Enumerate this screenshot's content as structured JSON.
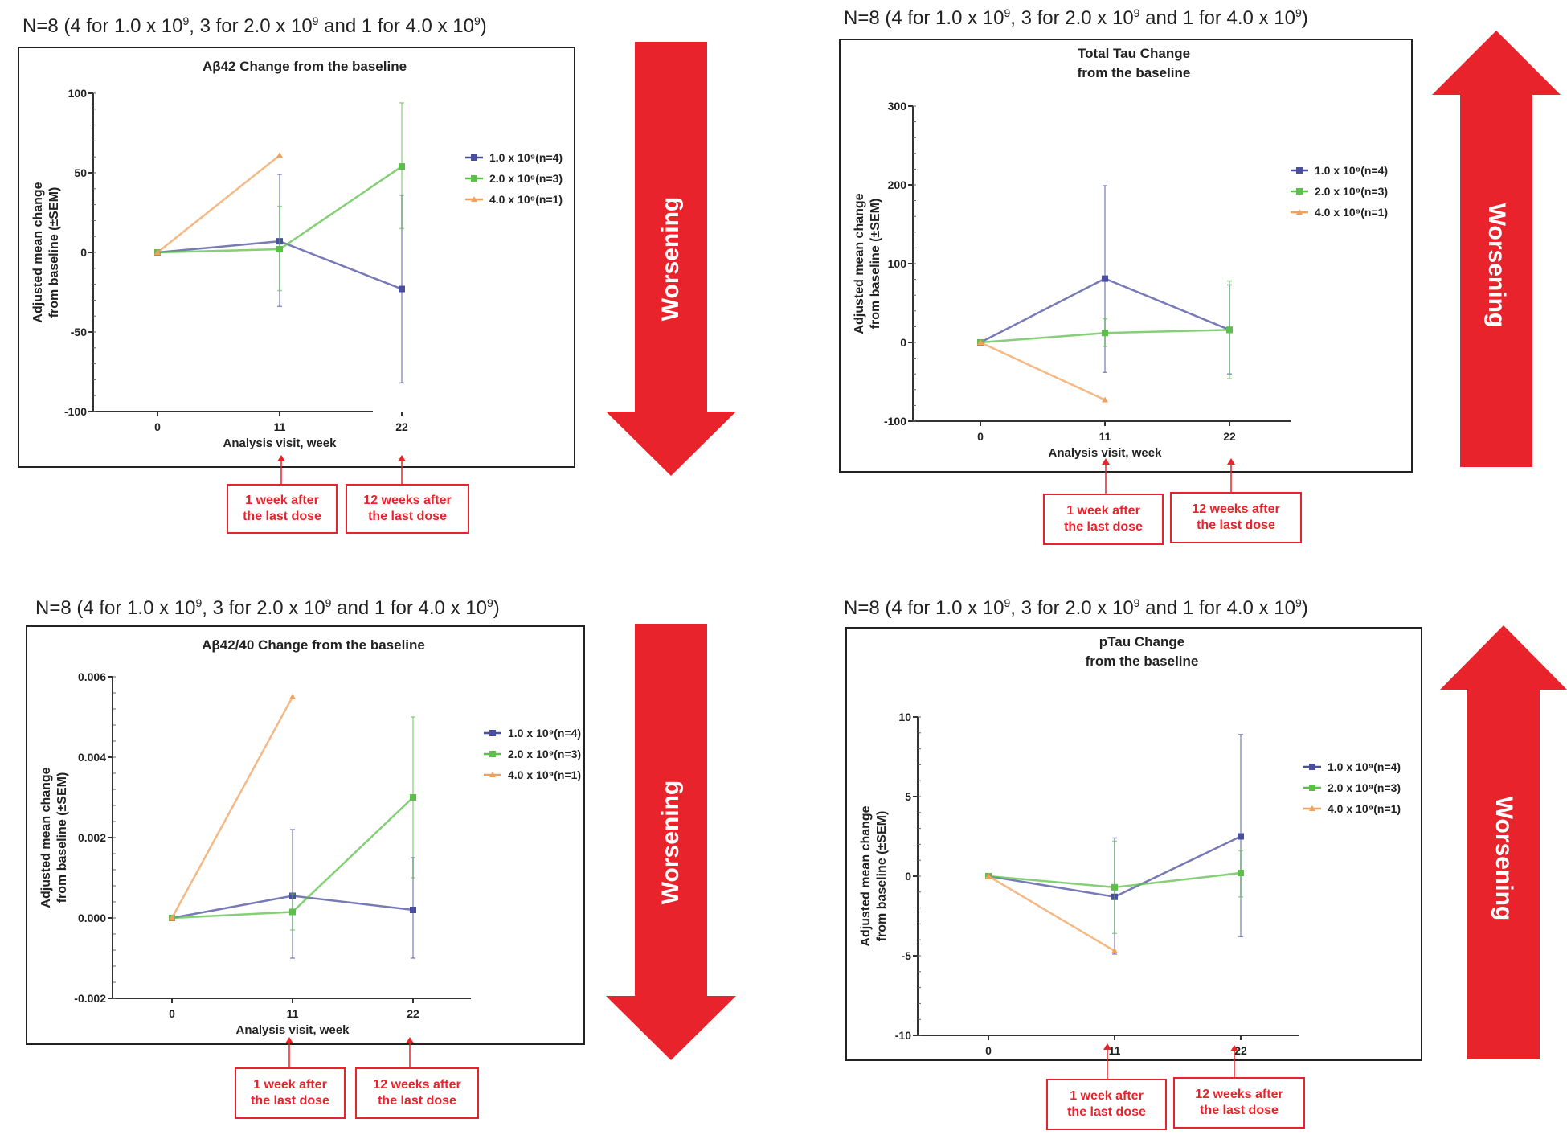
{
  "colors": {
    "series_1": "#4a4e9e",
    "series_2": "#5cbf4a",
    "series_3": "#f0a25c",
    "arrow": "#e8232b",
    "callout": "#e8232b"
  },
  "panels": [
    {
      "n_label": {
        "prefix": "N=8 (4 for 1.0 x 10",
        "exp1": "9",
        "mid1": ", 3 for 2.0 x 10",
        "exp2": "9",
        "mid2": " and 1 for 4.0 x 10",
        "exp3": "9",
        "suffix": ")"
      },
      "arrow_direction": "down",
      "arrow_label": "Worsening",
      "callouts": [
        "1 week after\nthe last dose",
        "12 weeks after\nthe last dose"
      ]
    },
    {
      "n_label": {
        "prefix": "N=8 (4 for 1.0 x 10",
        "exp1": "9",
        "mid1": ", 3 for 2.0 x 10",
        "exp2": "9",
        "mid2": " and 1 for 4.0 x 10",
        "exp3": "9",
        "suffix": ")"
      },
      "arrow_direction": "up",
      "arrow_label": "Worsening",
      "callouts": [
        "1 week after\nthe last dose",
        "12 weeks after\nthe last dose"
      ]
    },
    {
      "n_label": {
        "prefix": "N=8 (4 for 1.0 x 10",
        "exp1": "9",
        "mid1": ", 3 for 2.0 x 10",
        "exp2": "9",
        "mid2": " and 1 for 4.0 x 10",
        "exp3": "9",
        "suffix": ")"
      },
      "arrow_direction": "down",
      "arrow_label": "Worsening",
      "callouts": [
        "1 week after\nthe last dose",
        "12 weeks after\nthe last dose"
      ]
    },
    {
      "n_label": {
        "prefix": "N=8 (4 for 1.0 x 10",
        "exp1": "9",
        "mid1": ", 3 for 2.0 x 10",
        "exp2": "9",
        "mid2": " and 1 for 4.0 x 10",
        "exp3": "9",
        "suffix": ")"
      },
      "arrow_direction": "up",
      "arrow_label": "Worsening",
      "callouts": [
        "1 week after\nthe last dose",
        "12 weeks after\nthe last dose"
      ]
    }
  ],
  "chart_data": [
    {
      "type": "line",
      "title": [
        "Aβ42 Change from the baseline"
      ],
      "xlabel": "Analysis visit, week",
      "ylabel": [
        "Adjusted mean change",
        "from baseline (±SEM)"
      ],
      "x": [
        0,
        11,
        22
      ],
      "x_tick_labels": [
        "0",
        "11",
        "22"
      ],
      "ylim": [
        -100,
        100
      ],
      "y_ticks": [
        -100,
        -50,
        0,
        50,
        100
      ],
      "y_tick_labels": [
        "-100",
        "-50",
        "0",
        "50",
        "100"
      ],
      "legend_position": "right",
      "series": [
        {
          "name": "1.0 x 10⁹(n=4)",
          "x": [
            0,
            11,
            22
          ],
          "values": [
            0,
            7,
            -23
          ],
          "err_low": [
            null,
            -34,
            -82
          ],
          "err_high": [
            null,
            49,
            36
          ]
        },
        {
          "name": "2.0 x 10⁹(n=3)",
          "x": [
            0,
            11,
            22
          ],
          "values": [
            0,
            2,
            54
          ],
          "err_low": [
            null,
            -24,
            15
          ],
          "err_high": [
            null,
            29,
            94
          ]
        },
        {
          "name": "4.0 x 10⁹(n=1)",
          "x": [
            0,
            11
          ],
          "values": [
            0,
            61
          ],
          "err_low": [
            null,
            null
          ],
          "err_high": [
            null,
            null
          ]
        }
      ]
    },
    {
      "type": "line",
      "title": [
        "Total Tau Change",
        "from the baseline"
      ],
      "xlabel": "Analysis visit, week",
      "ylabel": [
        "Adjusted mean change",
        "from baseline (±SEM)"
      ],
      "x": [
        0,
        11,
        22
      ],
      "x_tick_labels": [
        "0",
        "11",
        "22"
      ],
      "ylim": [
        -100,
        300
      ],
      "y_ticks": [
        -100,
        0,
        100,
        200,
        300
      ],
      "y_tick_labels": [
        "-100",
        "0",
        "100",
        "200",
        "300"
      ],
      "legend_position": "right",
      "series": [
        {
          "name": "1.0 x 10⁹(n=4)",
          "x": [
            0,
            11,
            22
          ],
          "values": [
            0,
            81,
            16
          ],
          "err_low": [
            null,
            -38,
            -40
          ],
          "err_high": [
            null,
            199,
            73
          ]
        },
        {
          "name": "2.0 x 10⁹(n=3)",
          "x": [
            0,
            11,
            22
          ],
          "values": [
            0,
            12,
            16
          ],
          "err_low": [
            null,
            -5,
            -46
          ],
          "err_high": [
            null,
            30,
            78
          ]
        },
        {
          "name": "4.0 x 10⁹(n=1)",
          "x": [
            0,
            11
          ],
          "values": [
            0,
            -73
          ],
          "err_low": [
            null,
            null
          ],
          "err_high": [
            null,
            null
          ]
        }
      ]
    },
    {
      "type": "line",
      "title": [
        "Aβ42/40 Change from the baseline"
      ],
      "xlabel": "Analysis visit, week",
      "ylabel": [
        "Adjusted mean change",
        "from baseline (±SEM)"
      ],
      "x": [
        0,
        11,
        22
      ],
      "x_tick_labels": [
        "0",
        "11",
        "22"
      ],
      "ylim": [
        -0.002,
        0.006
      ],
      "y_ticks": [
        -0.002,
        0.0,
        0.002,
        0.004,
        0.006
      ],
      "y_tick_labels": [
        "-0.002",
        "0.000",
        "0.002",
        "0.004",
        "0.006"
      ],
      "legend_position": "right",
      "series": [
        {
          "name": "1.0 x 10⁹(n=4)",
          "x": [
            0,
            11,
            22
          ],
          "values": [
            0.0,
            0.00055,
            0.0002
          ],
          "err_low": [
            null,
            -0.001,
            -0.001
          ],
          "err_high": [
            null,
            0.0022,
            0.0015
          ]
        },
        {
          "name": "2.0 x 10⁹(n=3)",
          "x": [
            0,
            11,
            22
          ],
          "values": [
            0.0,
            0.00015,
            0.003
          ],
          "err_low": [
            null,
            -0.0003,
            0.001
          ],
          "err_high": [
            null,
            0.0006,
            0.005
          ]
        },
        {
          "name": "4.0 x 10⁹(n=1)",
          "x": [
            0,
            11
          ],
          "values": [
            0.0,
            0.0055
          ],
          "err_low": [
            null,
            null
          ],
          "err_high": [
            null,
            null
          ]
        }
      ]
    },
    {
      "type": "line",
      "title": [
        "pTau Change",
        "from the baseline"
      ],
      "xlabel": "Analysis visit, week",
      "ylabel": [
        "Adjusted mean change",
        "from baseline (±SEM)"
      ],
      "x": [
        0,
        11,
        22
      ],
      "x_tick_labels": [
        "0",
        "11",
        "22"
      ],
      "ylim": [
        -10,
        10
      ],
      "y_ticks": [
        -10,
        -5,
        0,
        5,
        10
      ],
      "y_tick_labels": [
        "-10",
        "-5",
        "0",
        "5",
        "10"
      ],
      "legend_position": "right",
      "series": [
        {
          "name": "1.0 x 10⁹(n=4)",
          "x": [
            0,
            11,
            22
          ],
          "values": [
            0,
            -1.3,
            2.5
          ],
          "err_low": [
            null,
            -4.9,
            -3.8
          ],
          "err_high": [
            null,
            2.4,
            8.9
          ]
        },
        {
          "name": "2.0 x 10⁹(n=3)",
          "x": [
            0,
            11,
            22
          ],
          "values": [
            0,
            -0.7,
            0.2
          ],
          "err_low": [
            null,
            -3.6,
            -1.3
          ],
          "err_high": [
            null,
            2.2,
            1.6
          ]
        },
        {
          "name": "4.0 x 10⁹(n=1)",
          "x": [
            0,
            11
          ],
          "values": [
            0,
            -4.7
          ],
          "err_low": [
            null,
            null
          ],
          "err_high": [
            null,
            null
          ]
        }
      ]
    }
  ]
}
